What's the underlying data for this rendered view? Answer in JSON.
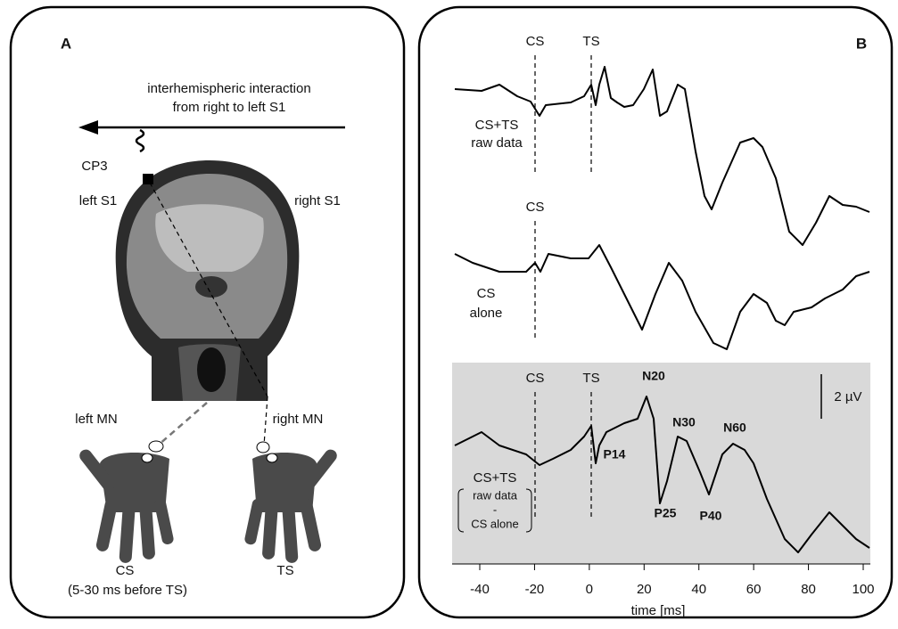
{
  "panel_a": {
    "label": "A",
    "arrow_text": [
      "interhemispheric interaction",
      "from right to left S1"
    ],
    "electrode": "CP3",
    "left_area": "left S1",
    "right_area": "right S1",
    "left_nerve": "left MN",
    "right_nerve": "right MN",
    "conditioning": "CS",
    "conditioning_note": "(5-30 ms before TS)",
    "test": "TS"
  },
  "panel_b": {
    "label": "B",
    "trace_1": {
      "label": [
        "CS+TS",
        "raw data"
      ],
      "markers": [
        "CS",
        "TS"
      ]
    },
    "trace_2": {
      "label": [
        "CS",
        "alone"
      ],
      "markers": [
        "CS"
      ]
    },
    "trace_3": {
      "label": "CS+TS",
      "bracket": [
        "raw data",
        "-",
        "CS alone"
      ],
      "markers": [
        "CS",
        "TS"
      ],
      "peaks": [
        "N20",
        "P14",
        "N30",
        "P25",
        "P40",
        "N60"
      ],
      "scale": "2 µV"
    },
    "x_axis": {
      "ticks": [
        "-40",
        "-20",
        "0",
        "20",
        "40",
        "60",
        "80",
        "100"
      ],
      "title": "time [ms]"
    }
  }
}
